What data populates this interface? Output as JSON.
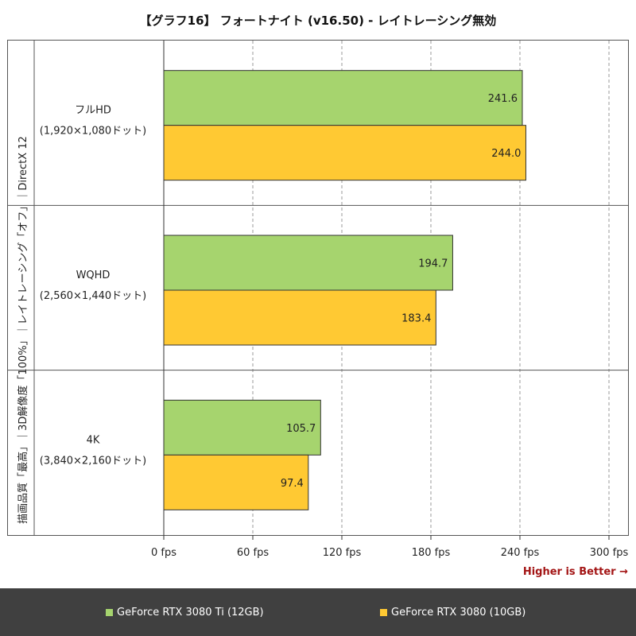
{
  "chart_data": {
    "type": "bar",
    "orientation": "horizontal",
    "title": "【グラフ16】 フォートナイト (v16.50) - レイトレーシング無効",
    "ylabel": "描画品質「最高」｜3D解像度「100%」｜レイトレーシング「オフ」｜DirectX 12",
    "categories": [
      {
        "name": "フルHD",
        "sub": "(1,920×1,080ドット)"
      },
      {
        "name": "WQHD",
        "sub": "(2,560×1,440ドット)"
      },
      {
        "name": "4K",
        "sub": "(3,840×2,160ドット)"
      }
    ],
    "series": [
      {
        "name": "GeForce RTX 3080 Ti (12GB)",
        "color": "#a6d46e",
        "values": [
          241.6,
          194.7,
          105.7
        ],
        "labels": [
          "241.6",
          "194.7",
          "105.7"
        ]
      },
      {
        "name": "GeForce RTX 3080 (10GB)",
        "color": "#ffc933",
        "values": [
          244.0,
          183.4,
          97.4
        ],
        "labels": [
          "244.0",
          "183.4",
          "97.4"
        ]
      }
    ],
    "xlim": [
      0,
      300
    ],
    "xticks": [
      0,
      60,
      120,
      180,
      240,
      300
    ],
    "xtick_labels": [
      "0 fps",
      "60 fps",
      "120 fps",
      "180 fps",
      "240 fps",
      "300 fps"
    ],
    "grid": "vertical dashed",
    "legend_position": "bottom",
    "note": "Higher is Better →"
  }
}
